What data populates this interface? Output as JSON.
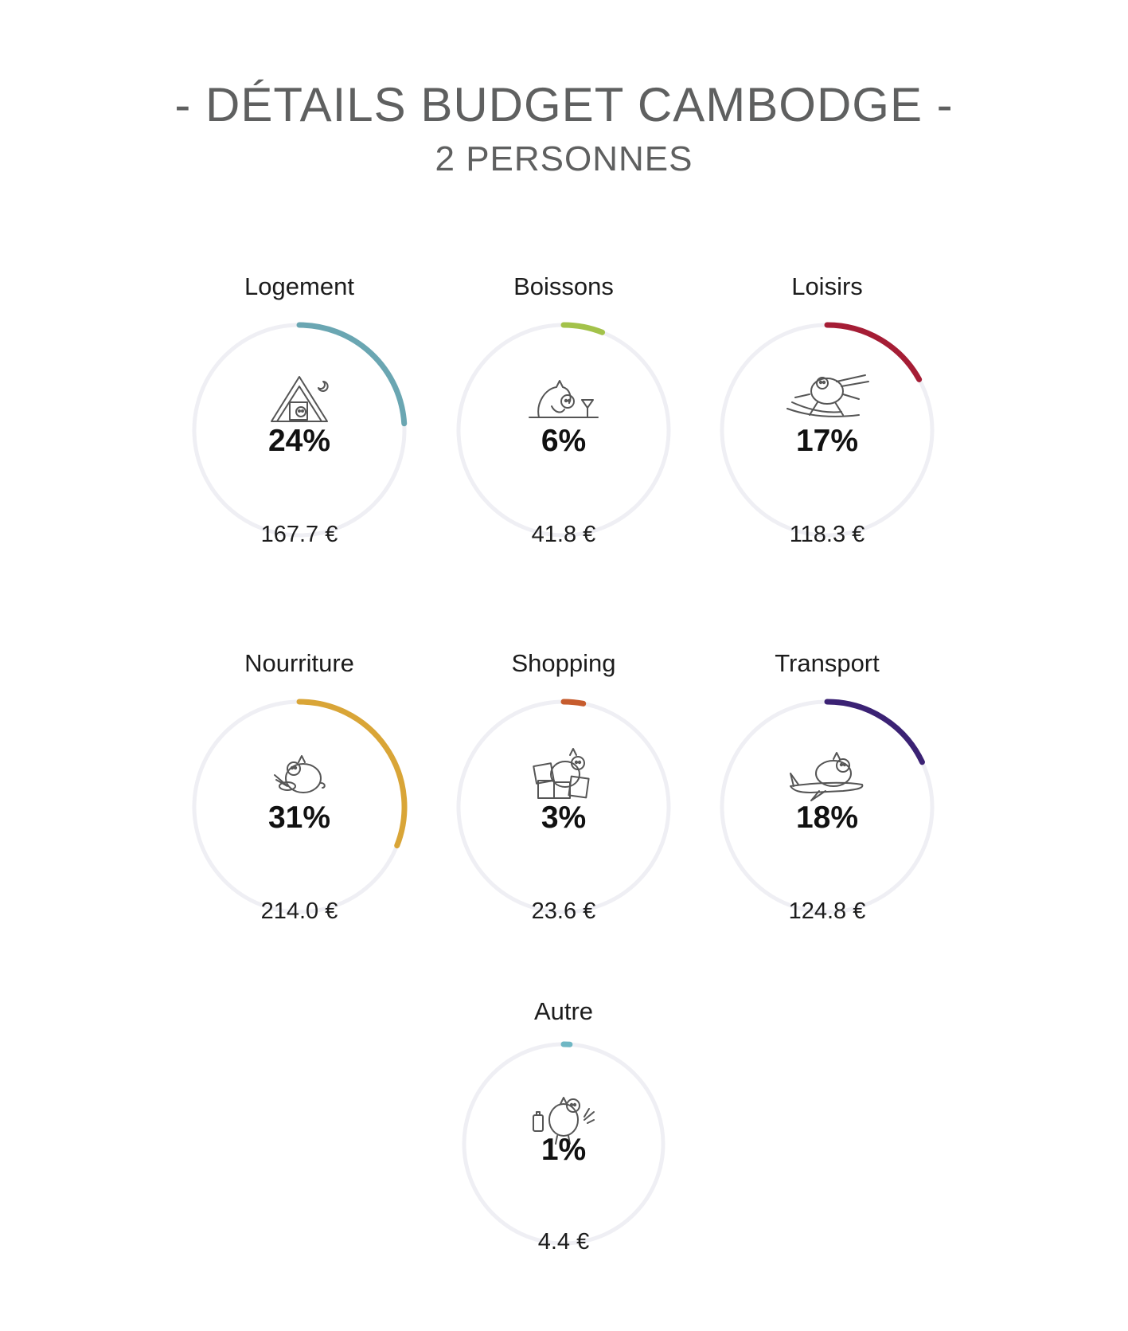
{
  "page": {
    "title": "- DÉTAILS BUDGET CAMBODGE -",
    "subtitle": "2 PERSONNES"
  },
  "chart_data": {
    "type": "radial-progress",
    "title": "- DÉTAILS BUDGET CAMBODGE -",
    "subtitle": "2 PERSONNES",
    "track_color": "#efeff4",
    "categories": [
      {
        "name": "Logement",
        "percent": 24,
        "percent_label": "24%",
        "amount": 167.7,
        "amount_label": "167.7 €",
        "color": "#6aa6b2",
        "icon": "tent-pig-icon"
      },
      {
        "name": "Boissons",
        "percent": 6,
        "percent_label": "6%",
        "amount": 41.8,
        "amount_label": "41.8 €",
        "color": "#a3c24a",
        "icon": "drink-pig-icon"
      },
      {
        "name": "Loisirs",
        "percent": 17,
        "percent_label": "17%",
        "amount": 118.3,
        "amount_label": "118.3 €",
        "color": "#a51d35",
        "icon": "ski-pig-icon"
      },
      {
        "name": "Nourriture",
        "percent": 31,
        "percent_label": "31%",
        "amount": 214.0,
        "amount_label": "214.0 €",
        "color": "#d9a537",
        "icon": "eating-pig-icon"
      },
      {
        "name": "Shopping",
        "percent": 3,
        "percent_label": "3%",
        "amount": 23.6,
        "amount_label": "23.6 €",
        "color": "#c65c2e",
        "icon": "shopping-pig-icon"
      },
      {
        "name": "Transport",
        "percent": 18,
        "percent_label": "18%",
        "amount": 124.8,
        "amount_label": "124.8 €",
        "color": "#3b2274",
        "icon": "plane-pig-icon"
      },
      {
        "name": "Autre",
        "percent": 1,
        "percent_label": "1%",
        "amount": 4.4,
        "amount_label": "4.4 €",
        "color": "#6fb7c4",
        "icon": "travel-pig-icon"
      }
    ]
  }
}
